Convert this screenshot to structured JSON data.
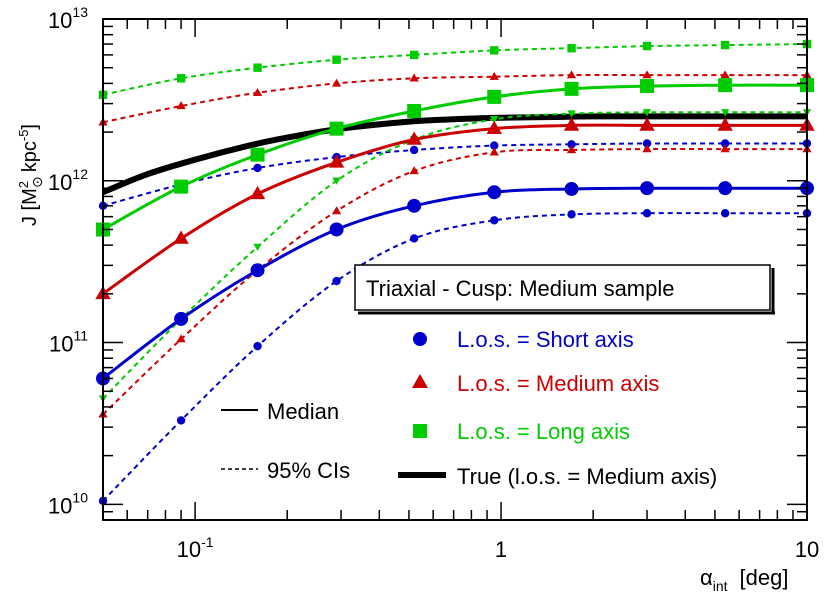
{
  "chart_data": {
    "type": "line",
    "xscale": "log",
    "yscale": "log",
    "xlim": [
      0.05,
      10
    ],
    "ylim": [
      8000000000.0,
      10000000000000.0
    ],
    "xlabel": {
      "main": "α",
      "sub": "int",
      "unit": "[deg]"
    },
    "ylabel": {
      "prefix": "J [M",
      "sup": "2",
      "sub": "⊙",
      "mid": "kpc",
      "sup2": "-5",
      "suffix": "]"
    },
    "xticks": [
      {
        "value": 0.1,
        "base": "10",
        "exp": "-1"
      },
      {
        "value": 1,
        "base": "1",
        "exp": ""
      },
      {
        "value": 10,
        "base": "10",
        "exp": ""
      }
    ],
    "yticks": [
      {
        "value": 10000000000.0,
        "base": "10",
        "exp": "10"
      },
      {
        "value": 100000000000.0,
        "base": "10",
        "exp": "11"
      },
      {
        "value": 1000000000000.0,
        "base": "10",
        "exp": "12"
      },
      {
        "value": 10000000000000.0,
        "base": "10",
        "exp": "13"
      }
    ],
    "x": [
      0.05,
      0.09,
      0.16,
      0.29,
      0.52,
      0.95,
      1.7,
      3.0,
      5.4,
      10
    ],
    "series": [
      {
        "name": "Short axis median",
        "group": "short",
        "kind": "median",
        "color": "#0000cc",
        "marker": "circle",
        "values": [
          60000000000.0,
          140000000000.0,
          280000000000.0,
          500000000000.0,
          700000000000.0,
          850000000000.0,
          890000000000.0,
          900000000000.0,
          900000000000.0,
          900000000000.0
        ]
      },
      {
        "name": "Short axis 95% CI upper",
        "group": "short",
        "kind": "ci",
        "color": "#0000cc",
        "marker": "circle",
        "values": [
          700000000000.0,
          950000000000.0,
          1200000000000.0,
          1400000000000.0,
          1550000000000.0,
          1650000000000.0,
          1680000000000.0,
          1700000000000.0,
          1700000000000.0,
          1700000000000.0
        ]
      },
      {
        "name": "Short axis 95% CI lower",
        "group": "short",
        "kind": "ci",
        "color": "#0000cc",
        "marker": "circle",
        "values": [
          10500000000.0,
          33000000000.0,
          95000000000.0,
          240000000000.0,
          440000000000.0,
          570000000000.0,
          620000000000.0,
          630000000000.0,
          630000000000.0,
          630000000000.0
        ]
      },
      {
        "name": "Medium axis median",
        "group": "medium",
        "kind": "median",
        "color": "#cc0000",
        "marker": "triangle",
        "values": [
          200000000000.0,
          440000000000.0,
          830000000000.0,
          1300000000000.0,
          1800000000000.0,
          2100000000000.0,
          2200000000000.0,
          2200000000000.0,
          2200000000000.0,
          2200000000000.0
        ]
      },
      {
        "name": "Medium axis 95% CI upper",
        "group": "medium",
        "kind": "ci",
        "color": "#cc0000",
        "marker": "triangle",
        "values": [
          2300000000000.0,
          2900000000000.0,
          3500000000000.0,
          4000000000000.0,
          4300000000000.0,
          4400000000000.0,
          4500000000000.0,
          4500000000000.0,
          4500000000000.0,
          4500000000000.0
        ]
      },
      {
        "name": "Medium axis 95% CI lower",
        "group": "medium",
        "kind": "ci",
        "color": "#cc0000",
        "marker": "triangle",
        "values": [
          36000000000.0,
          105000000000.0,
          280000000000.0,
          650000000000.0,
          1150000000000.0,
          1500000000000.0,
          1550000000000.0,
          1570000000000.0,
          1570000000000.0,
          1570000000000.0
        ]
      },
      {
        "name": "Long axis median",
        "group": "long",
        "kind": "median",
        "color": "#00cc00",
        "marker": "square",
        "values": [
          500000000000.0,
          920000000000.0,
          1450000000000.0,
          2100000000000.0,
          2700000000000.0,
          3300000000000.0,
          3700000000000.0,
          3850000000000.0,
          3900000000000.0,
          3900000000000.0
        ]
      },
      {
        "name": "Long axis 95% CI upper",
        "group": "long",
        "kind": "ci",
        "color": "#00cc00",
        "marker": "square",
        "values": [
          3400000000000.0,
          4300000000000.0,
          5000000000000.0,
          5600000000000.0,
          6000000000000.0,
          6400000000000.0,
          6600000000000.0,
          6800000000000.0,
          6900000000000.0,
          7000000000000.0
        ]
      },
      {
        "name": "Long axis 95% CI lower",
        "group": "long",
        "kind": "ci",
        "color": "#00cc00",
        "marker": "triangle-down",
        "values": [
          45000000000.0,
          140000000000.0,
          390000000000.0,
          1000000000000.0,
          1800000000000.0,
          2400000000000.0,
          2600000000000.0,
          2650000000000.0,
          2650000000000.0,
          2650000000000.0
        ]
      }
    ],
    "true_curve": {
      "name": "True (l.o.s. = Medium axis)",
      "color": "#000000",
      "x": [
        0.05,
        0.07,
        0.1,
        0.15,
        0.2,
        0.3,
        0.5,
        0.7,
        1.0,
        1.5,
        2,
        3,
        5,
        10
      ],
      "values": [
        850000000000.0,
        1100000000000.0,
        1350000000000.0,
        1650000000000.0,
        1850000000000.0,
        2100000000000.0,
        2320000000000.0,
        2400000000000.0,
        2450000000000.0,
        2480000000000.0,
        2500000000000.0,
        2500000000000.0,
        2500000000000.0,
        2500000000000.0
      ]
    },
    "legend": {
      "title": "Triaxial - Cusp: Medium sample",
      "entries": [
        {
          "label": "L.o.s. = Short axis",
          "color": "#0000cc",
          "marker": "circle"
        },
        {
          "label": "L.o.s. = Medium axis",
          "color": "#cc0000",
          "marker": "triangle"
        },
        {
          "label": "L.o.s. = Long axis",
          "color": "#00cc00",
          "marker": "square"
        },
        {
          "label": "True (l.o.s. = Medium axis)",
          "color": "#000000",
          "marker": "thick-line"
        }
      ],
      "style_entries": [
        {
          "label": "Median",
          "style": "solid"
        },
        {
          "label": "95% CIs",
          "style": "dashed"
        }
      ]
    }
  }
}
